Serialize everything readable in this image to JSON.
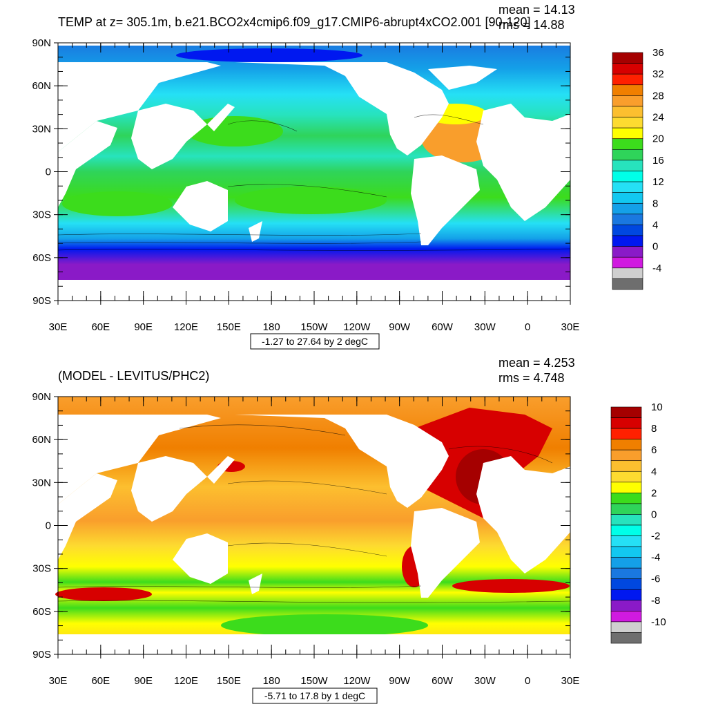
{
  "panels": [
    {
      "title": "TEMP at z= 305.1m, b.e21.BCO2x4cmip6.f09_g17.CMIP6-abrupt4xCO2.001 [90-120]",
      "stats": {
        "mean": "mean = 14.13",
        "rms": "rms = 14.88"
      },
      "range_label": "-1.27 to 27.64 by 2 degC",
      "colorbar": {
        "labels": [
          "36",
          "32",
          "28",
          "24",
          "20",
          "16",
          "12",
          "8",
          "4",
          "0",
          "-4"
        ],
        "colors": [
          "#a50000",
          "#d70000",
          "#ff2000",
          "#f07f00",
          "#f99e2c",
          "#fcbf2f",
          "#fddb30",
          "#ffff00",
          "#3cdc1c",
          "#2fd45a",
          "#27e3bd",
          "#00ffe8",
          "#25e0f5",
          "#12c8f0",
          "#14a0e8",
          "#1a78e0",
          "#0048e0",
          "#0018f0",
          "#8a1ac7",
          "#d01ae0",
          "#cfcfcf",
          "#6e6e6e"
        ]
      },
      "field": "absolute"
    },
    {
      "title": "(MODEL - LEVITUS/PHC2)",
      "stats": {
        "mean": "mean = 4.253",
        "rms": "rms = 4.748"
      },
      "range_label": "-5.71 to 17.8 by 1 degC",
      "colorbar": {
        "labels": [
          "10",
          "8",
          "6",
          "4",
          "2",
          "0",
          "-2",
          "-4",
          "-6",
          "-8",
          "-10"
        ],
        "colors": [
          "#a50000",
          "#d70000",
          "#ff2000",
          "#f07f00",
          "#f99e2c",
          "#fcbf2f",
          "#fddb30",
          "#ffff00",
          "#3cdc1c",
          "#2fd45a",
          "#27e3bd",
          "#00ffe8",
          "#25e0f5",
          "#12c8f0",
          "#14a0e8",
          "#1a78e0",
          "#0048e0",
          "#0018f0",
          "#8a1ac7",
          "#d01ae0",
          "#cfcfcf",
          "#6e6e6e"
        ]
      },
      "field": "difference"
    }
  ],
  "axes": {
    "lat_labels": [
      "90N",
      "60N",
      "30N",
      "0",
      "30S",
      "60S",
      "90S"
    ],
    "lon_labels": [
      "30E",
      "60E",
      "90E",
      "120E",
      "150E",
      "180",
      "150W",
      "120W",
      "90W",
      "60W",
      "30W",
      "0",
      "30E"
    ]
  }
}
